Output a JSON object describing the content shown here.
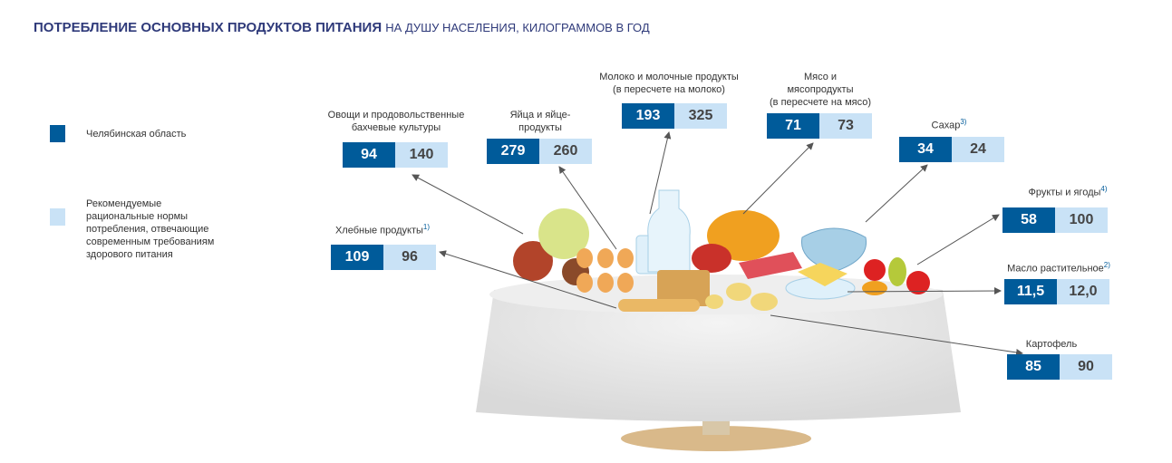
{
  "header": {
    "title": "ПОТРЕБЛЕНИЕ ОСНОВНЫХ ПРОДУКТОВ ПИТАНИЯ",
    "subtitle": "НА ДУШУ НАСЕЛЕНИЯ, КИЛОГРАММОВ В ГОД"
  },
  "legend": [
    {
      "lines": [
        "Челябинская область"
      ]
    },
    {
      "lines": [
        "Рекомендуемые",
        "рациональные нормы",
        "потребления, отвечающие",
        "современным требованиям",
        "здорового питания"
      ]
    }
  ],
  "items": [
    {
      "lines": [
        "Овощи и продовольственные",
        "бахчевые культуры"
      ],
      "region": "94",
      "norm": "140"
    },
    {
      "lines": [
        "Яйца и яйце-",
        "продукты"
      ],
      "region": "279",
      "norm": "260"
    },
    {
      "lines": [
        "Молоко и молочные продукты",
        "(в пересчете на молоко)"
      ],
      "region": "193",
      "norm": "325"
    },
    {
      "lines": [
        "Мясо и",
        "мясопродукты",
        "(в пересчете на мясо)"
      ],
      "region": "71",
      "norm": "73"
    },
    {
      "lines": [
        "Сахар"
      ],
      "note": "3)",
      "region": "34",
      "norm": "24"
    },
    {
      "lines": [
        "Фрукты и ягоды"
      ],
      "note": "4)",
      "region": "58",
      "norm": "100"
    },
    {
      "lines": [
        "Масло растительное"
      ],
      "note": "2)",
      "region": "11,5",
      "norm": "12,0"
    },
    {
      "lines": [
        "Картофель"
      ],
      "region": "85",
      "norm": "90"
    },
    {
      "lines": [
        "Хлебные продукты"
      ],
      "note": "1)",
      "region": "109",
      "norm": "96"
    }
  ]
}
